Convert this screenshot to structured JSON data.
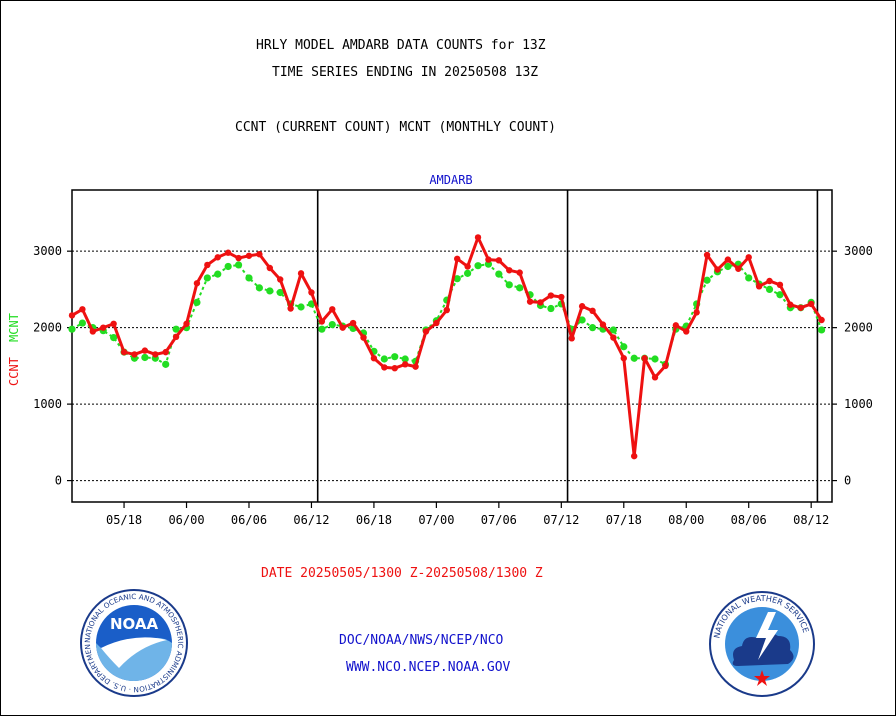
{
  "header": {
    "line1": "HRLY MODEL AMDARB DATA COUNTS for 13Z",
    "line2": "TIME SERIES ENDING IN 20250508 13Z",
    "line3": "CCNT (CURRENT COUNT) MCNT (MONTHLY COUNT)"
  },
  "footer": {
    "date_range": "DATE 20250505/1300 Z-20250508/1300 Z",
    "org_path": "DOC/NOAA/NWS/NCEP/NCO",
    "website": "WWW.NCO.NCEP.NOAA.GOV"
  },
  "logos": {
    "noaa_center_text": "NOAA",
    "noaa_ring_text": "NATIONAL OCEANIC AND ATMOSPHERIC ADMINISTRATION · U.S. DEPARTMENT OF COMMERCE ·",
    "nws_ring_text": "NATIONAL WEATHER SERVICE"
  },
  "colors": {
    "ccnt": "#ee1111",
    "mcnt": "#22dd22",
    "title_blue": "#1111cc",
    "text_red": "#ee1111"
  },
  "chart_data": {
    "type": "line",
    "title": "AMDARB",
    "ylabel_parts": [
      "CCNT",
      "MCNT"
    ],
    "ylim": [
      -280,
      3800
    ],
    "yticks": [
      0,
      1000,
      2000,
      3000
    ],
    "ytick_labels": [
      "0",
      "1000",
      "2000",
      "3000"
    ],
    "xlim": [
      0,
      73
    ],
    "xticks": [
      {
        "x": 5,
        "label": "05/18"
      },
      {
        "x": 11,
        "label": "06/00"
      },
      {
        "x": 17,
        "label": "06/06"
      },
      {
        "x": 23,
        "label": "06/12"
      },
      {
        "x": 29,
        "label": "06/18"
      },
      {
        "x": 35,
        "label": "07/00"
      },
      {
        "x": 41,
        "label": "07/06"
      },
      {
        "x": 47,
        "label": "07/12"
      },
      {
        "x": 53,
        "label": "07/18"
      },
      {
        "x": 59,
        "label": "08/00"
      },
      {
        "x": 65,
        "label": "08/06"
      },
      {
        "x": 71,
        "label": "08/12"
      }
    ],
    "day_boundaries": [
      23.6,
      47.6,
      71.6
    ],
    "grid": "horizontal dotted",
    "series": [
      {
        "name": "CCNT",
        "color": "#ee1111",
        "style": "line-dot",
        "values": [
          2160,
          2240,
          1950,
          2000,
          2050,
          1680,
          1650,
          1700,
          1650,
          1680,
          1880,
          2050,
          2580,
          2820,
          2920,
          2980,
          2910,
          2940,
          2960,
          2780,
          2630,
          2250,
          2710,
          2460,
          2080,
          2240,
          2000,
          2060,
          1870,
          1600,
          1480,
          1470,
          1520,
          1490,
          1950,
          2060,
          2230,
          2900,
          2800,
          3180,
          2890,
          2880,
          2750,
          2720,
          2340,
          2330,
          2420,
          2400,
          1860,
          2280,
          2220,
          2040,
          1870,
          1600,
          320,
          1600,
          1350,
          1500,
          2030,
          1950,
          2200,
          2950,
          2760,
          2890,
          2770,
          2920,
          2540,
          2610,
          2560,
          2300,
          2260,
          2310,
          2100
        ]
      },
      {
        "name": "MCNT",
        "color": "#22dd22",
        "style": "dotted",
        "values": [
          1980,
          2060,
          2000,
          1960,
          1870,
          1680,
          1600,
          1610,
          1600,
          1520,
          1980,
          2000,
          2330,
          2650,
          2700,
          2800,
          2820,
          2650,
          2520,
          2480,
          2460,
          2310,
          2270,
          2310,
          1980,
          2040,
          2020,
          1990,
          1930,
          1690,
          1590,
          1620,
          1590,
          1560,
          1970,
          2090,
          2360,
          2640,
          2710,
          2810,
          2830,
          2700,
          2560,
          2520,
          2430,
          2290,
          2250,
          2310,
          1980,
          2100,
          2000,
          1980,
          1970,
          1750,
          1600,
          1600,
          1590,
          1520,
          1980,
          2020,
          2310,
          2620,
          2730,
          2800,
          2830,
          2650,
          2570,
          2500,
          2430,
          2260,
          2260,
          2330,
          1970
        ]
      }
    ]
  }
}
